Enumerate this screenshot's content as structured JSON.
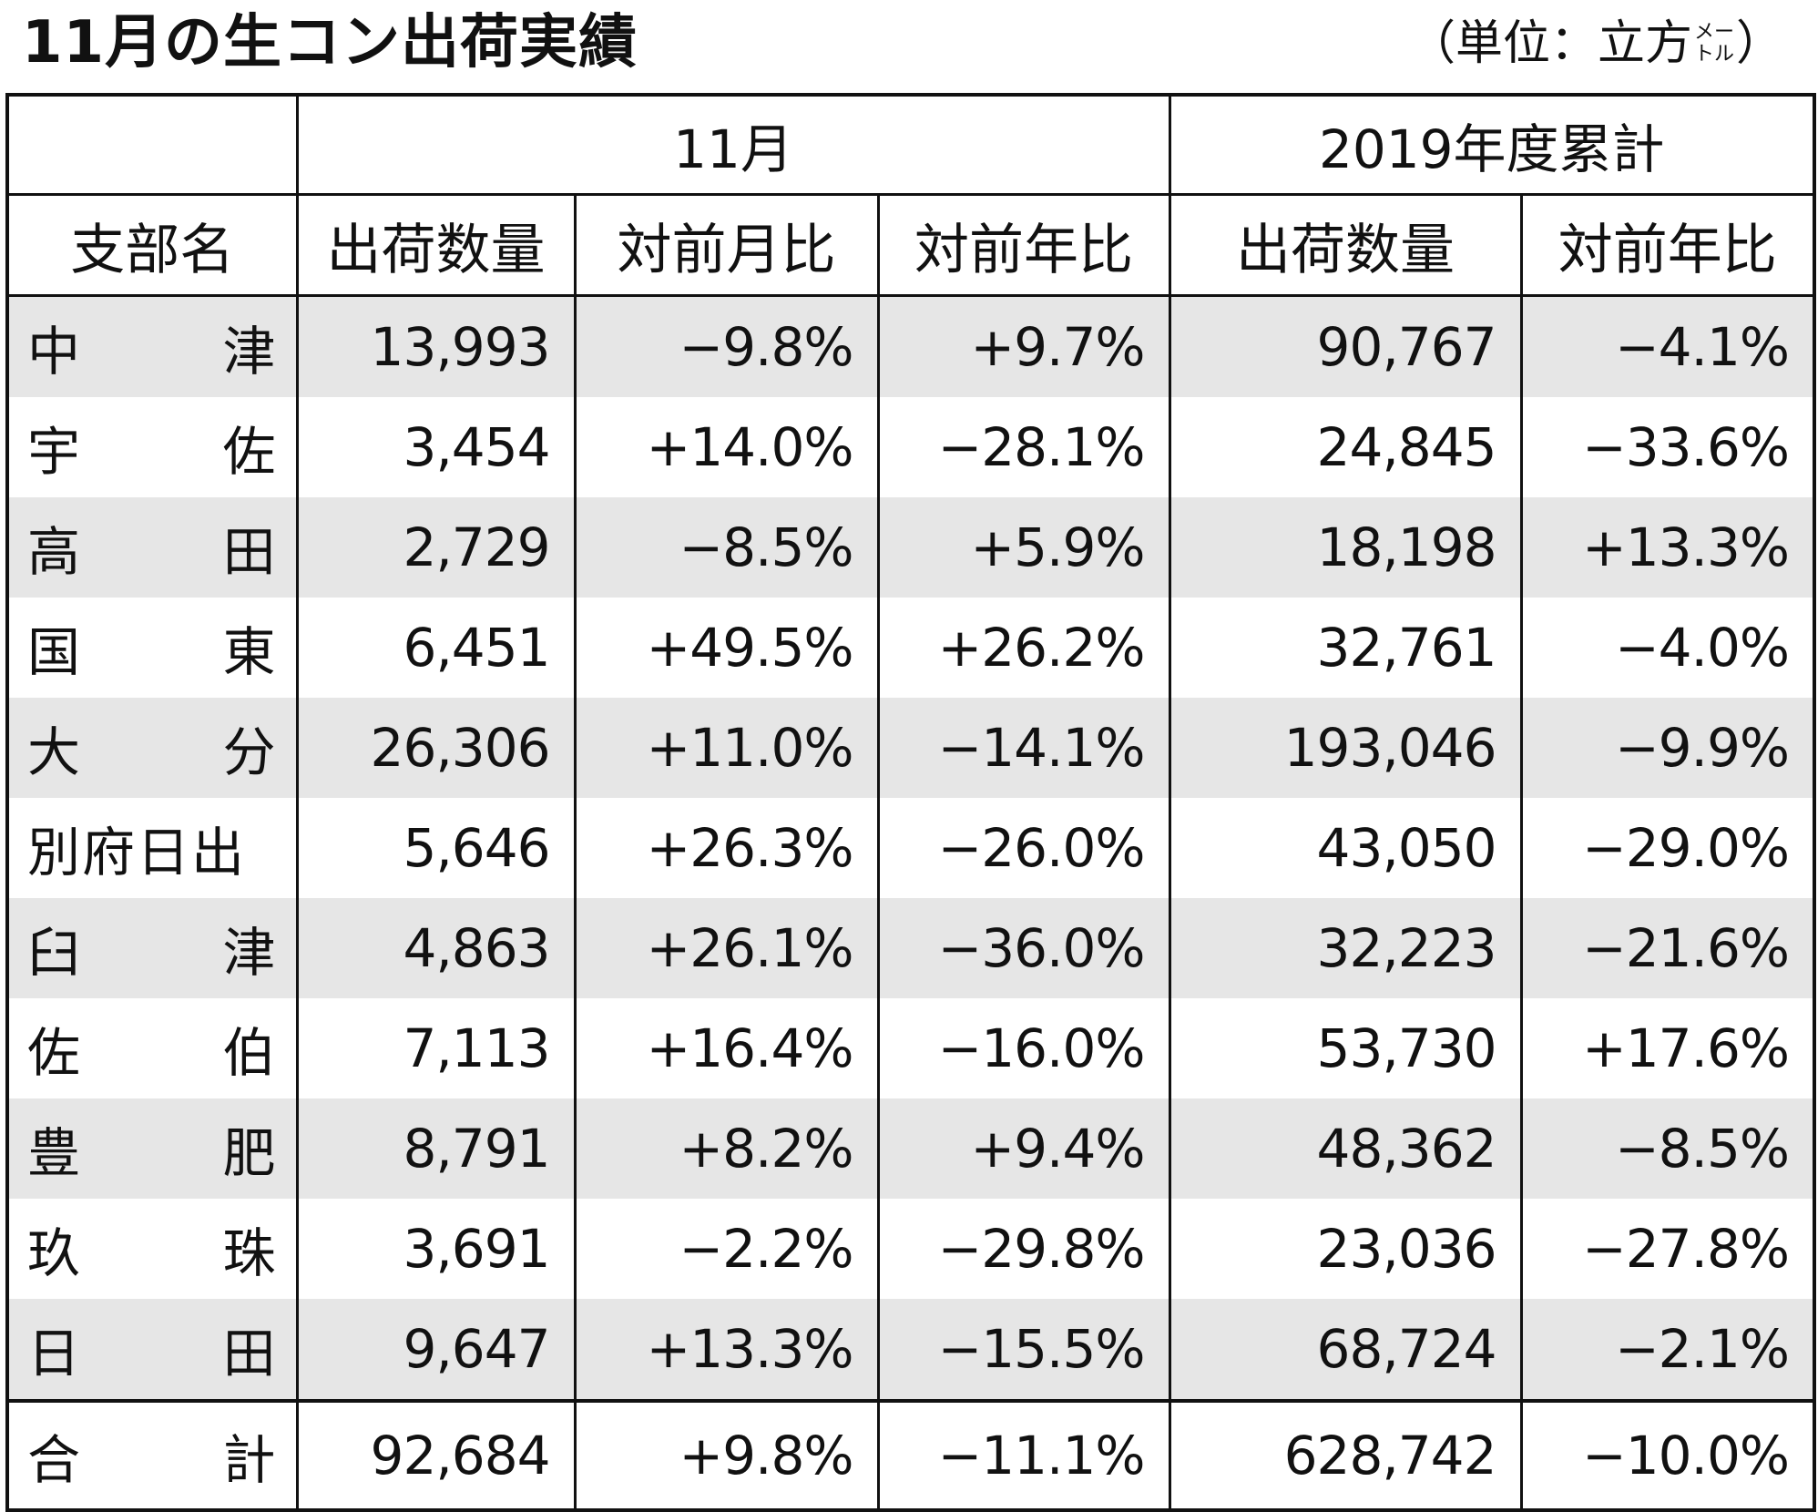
{
  "title": "11月の生コン出荷実績",
  "unit": {
    "open": "（",
    "text": "単位：立方",
    "upper": "メー",
    "lower": "トル",
    "close": "）"
  },
  "table": {
    "group_headers": [
      "",
      "11月",
      "2019年度累計"
    ],
    "column_headers": [
      "支部名",
      "出荷数量",
      "対前月比",
      "対前年比",
      "出荷数量",
      "対前年比"
    ],
    "rows": [
      {
        "name": [
          "中",
          "津"
        ],
        "qty": "13,993",
        "mom": "−9.8%",
        "yoy": "+9.7%",
        "cum_qty": "90,767",
        "cum_yoy": "−4.1%"
      },
      {
        "name": [
          "宇",
          "佐"
        ],
        "qty": "3,454",
        "mom": "+14.0%",
        "yoy": "−28.1%",
        "cum_qty": "24,845",
        "cum_yoy": "−33.6%"
      },
      {
        "name": [
          "高",
          "田"
        ],
        "qty": "2,729",
        "mom": "−8.5%",
        "yoy": "+5.9%",
        "cum_qty": "18,198",
        "cum_yoy": "+13.3%"
      },
      {
        "name": [
          "国",
          "東"
        ],
        "qty": "6,451",
        "mom": "+49.5%",
        "yoy": "+26.2%",
        "cum_qty": "32,761",
        "cum_yoy": "−4.0%"
      },
      {
        "name": [
          "大",
          "分"
        ],
        "qty": "26,306",
        "mom": "+11.0%",
        "yoy": "−14.1%",
        "cum_qty": "193,046",
        "cum_yoy": "−9.9%"
      },
      {
        "name": [
          "別府日出"
        ],
        "qty": "5,646",
        "mom": "+26.3%",
        "yoy": "−26.0%",
        "cum_qty": "43,050",
        "cum_yoy": "−29.0%"
      },
      {
        "name": [
          "臼",
          "津"
        ],
        "qty": "4,863",
        "mom": "+26.1%",
        "yoy": "−36.0%",
        "cum_qty": "32,223",
        "cum_yoy": "−21.6%"
      },
      {
        "name": [
          "佐",
          "伯"
        ],
        "qty": "7,113",
        "mom": "+16.4%",
        "yoy": "−16.0%",
        "cum_qty": "53,730",
        "cum_yoy": "+17.6%"
      },
      {
        "name": [
          "豊",
          "肥"
        ],
        "qty": "8,791",
        "mom": "+8.2%",
        "yoy": "+9.4%",
        "cum_qty": "48,362",
        "cum_yoy": "−8.5%"
      },
      {
        "name": [
          "玖",
          "珠"
        ],
        "qty": "3,691",
        "mom": "−2.2%",
        "yoy": "−29.8%",
        "cum_qty": "23,036",
        "cum_yoy": "−27.8%"
      },
      {
        "name": [
          "日",
          "田"
        ],
        "qty": "9,647",
        "mom": "+13.3%",
        "yoy": "−15.5%",
        "cum_qty": "68,724",
        "cum_yoy": "−2.1%"
      }
    ],
    "total": {
      "name": [
        "合",
        "計"
      ],
      "qty": "92,684",
      "mom": "+9.8%",
      "yoy": "−11.1%",
      "cum_qty": "628,742",
      "cum_yoy": "−10.0%"
    }
  }
}
